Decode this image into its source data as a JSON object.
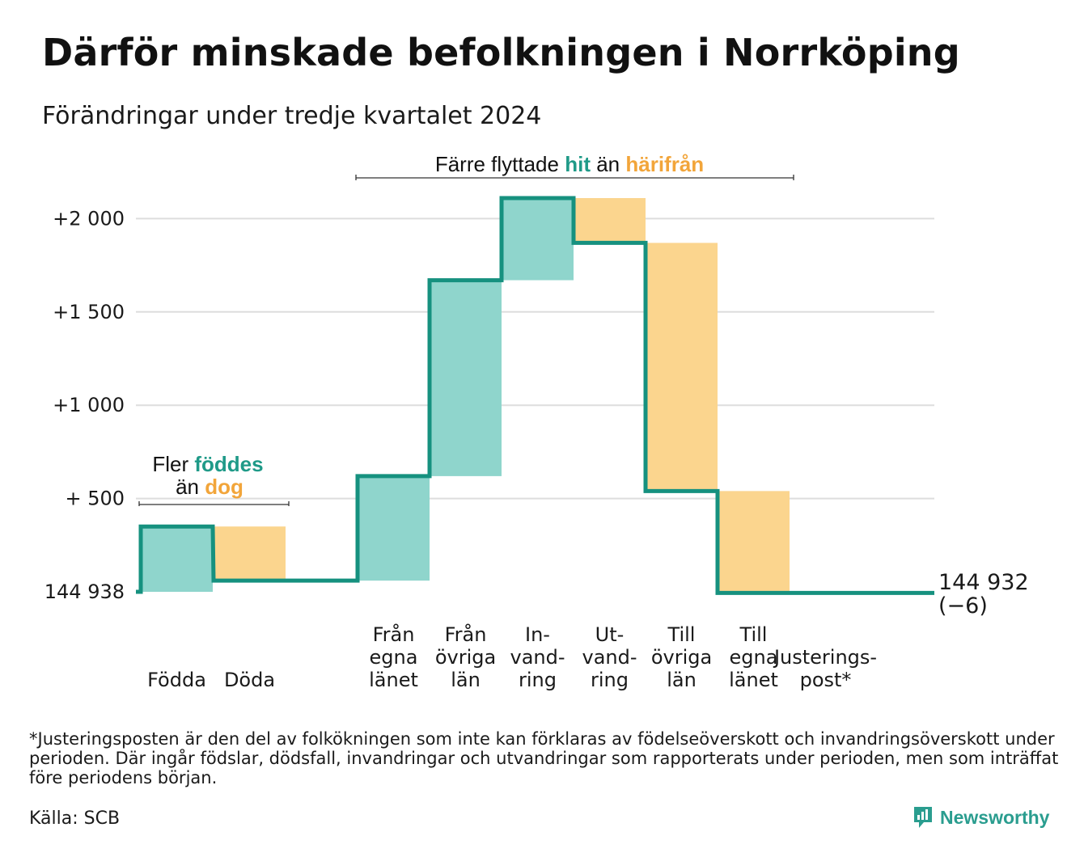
{
  "title": "Därför minskade befolkningen i Norrköping",
  "subtitle": "Förändringar under tredje kvartalet 2024",
  "footnote": "*Justeringsposten är den del av folkökningen som inte kan förklaras av födelseöverskott och invandringsöverskott under perioden. Där ingår födslar, dödsfall, invandringar och utvandringar som rapporterats under perioden, men som inträffat före periodens början.",
  "source": "Källa: SCB",
  "brand": "Newsworthy",
  "colors": {
    "increase": "#8fd5cc",
    "decrease": "#fbd58e",
    "line": "#16917f",
    "hit": "#1f9a88",
    "harifran": "#f2a53a",
    "grid": "#dddddd"
  },
  "annotations": {
    "births": {
      "line1_prefix": "Fler ",
      "line1_highlight": "föddes",
      "line2_prefix": "än ",
      "line2_highlight": "dog"
    },
    "migration": {
      "prefix": "Färre flyttade ",
      "highlight1": "hit",
      "middle": " än ",
      "highlight2": "härifrån"
    }
  },
  "chart_data": {
    "type": "waterfall",
    "start_label": "144 938",
    "end_label": "144 932",
    "end_change": "(−6)",
    "ylim": [
      0,
      2200
    ],
    "yticks": [
      {
        "value": 0,
        "label": "144 938"
      },
      {
        "value": 500,
        "label": "+  500"
      },
      {
        "value": 1000,
        "label": "+1 000"
      },
      {
        "value": 1500,
        "label": "+1 500"
      },
      {
        "value": 2000,
        "label": "+2 000"
      }
    ],
    "grid": true,
    "steps": [
      {
        "label": [
          "Födda"
        ],
        "change": 350,
        "kind": "increase"
      },
      {
        "label": [
          "Döda"
        ],
        "change": -290,
        "kind": "decrease"
      },
      {
        "label": [],
        "change": 0,
        "kind": "gap"
      },
      {
        "label": [
          "Från",
          "egna",
          "länet"
        ],
        "change": 560,
        "kind": "increase"
      },
      {
        "label": [
          "Från",
          "övriga",
          "län"
        ],
        "change": 1050,
        "kind": "increase"
      },
      {
        "label": [
          "In-",
          "vand-",
          "ring"
        ],
        "change": 440,
        "kind": "increase"
      },
      {
        "label": [
          "Ut-",
          "vand-",
          "ring"
        ],
        "change": -240,
        "kind": "decrease"
      },
      {
        "label": [
          "Till",
          "övriga",
          "län"
        ],
        "change": -1330,
        "kind": "decrease"
      },
      {
        "label": [
          "Till",
          "egna",
          "länet"
        ],
        "change": -546,
        "kind": "decrease"
      },
      {
        "label": [
          "Justerings-",
          "post*"
        ],
        "change": 0,
        "kind": "adjustment"
      }
    ]
  }
}
